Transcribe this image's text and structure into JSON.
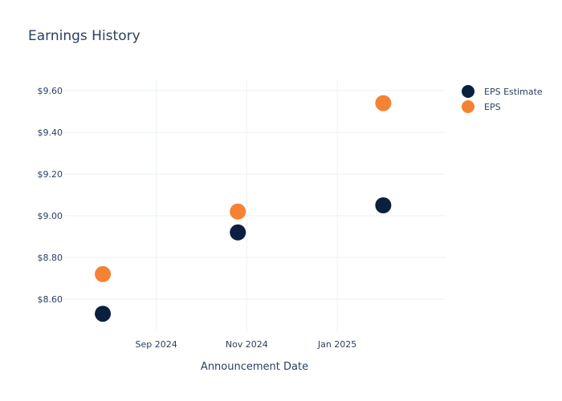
{
  "chart_data": {
    "type": "scatter",
    "title": "Earnings History",
    "xlabel": "Announcement Date",
    "ylabel": "",
    "x_ticks": [
      {
        "date": "2024-09-01",
        "label": "Sep 2024"
      },
      {
        "date": "2024-11-01",
        "label": "Nov 2024"
      },
      {
        "date": "2025-01-01",
        "label": "Jan 2025"
      }
    ],
    "y_ticks": [
      {
        "value": 8.6,
        "label": "$8.60"
      },
      {
        "value": 8.8,
        "label": "$8.80"
      },
      {
        "value": 9.0,
        "label": "$9.00"
      },
      {
        "value": 9.2,
        "label": "$9.20"
      },
      {
        "value": 9.4,
        "label": "$9.40"
      },
      {
        "value": 9.6,
        "label": "$9.60"
      }
    ],
    "xlim": [
      "2024-07-01",
      "2025-03-15"
    ],
    "ylim": [
      8.45,
      9.65
    ],
    "grid": true,
    "legend_position": "top-right",
    "series": [
      {
        "name": "EPS Estimate",
        "color": "#0b1f3f",
        "points": [
          {
            "x": "2024-07-27",
            "y": 8.53
          },
          {
            "x": "2024-10-26",
            "y": 8.92
          },
          {
            "x": "2025-02-01",
            "y": 9.05
          }
        ]
      },
      {
        "name": "EPS",
        "color": "#f58233",
        "points": [
          {
            "x": "2024-07-27",
            "y": 8.72
          },
          {
            "x": "2024-10-26",
            "y": 9.02
          },
          {
            "x": "2025-02-01",
            "y": 9.54
          }
        ]
      }
    ]
  }
}
